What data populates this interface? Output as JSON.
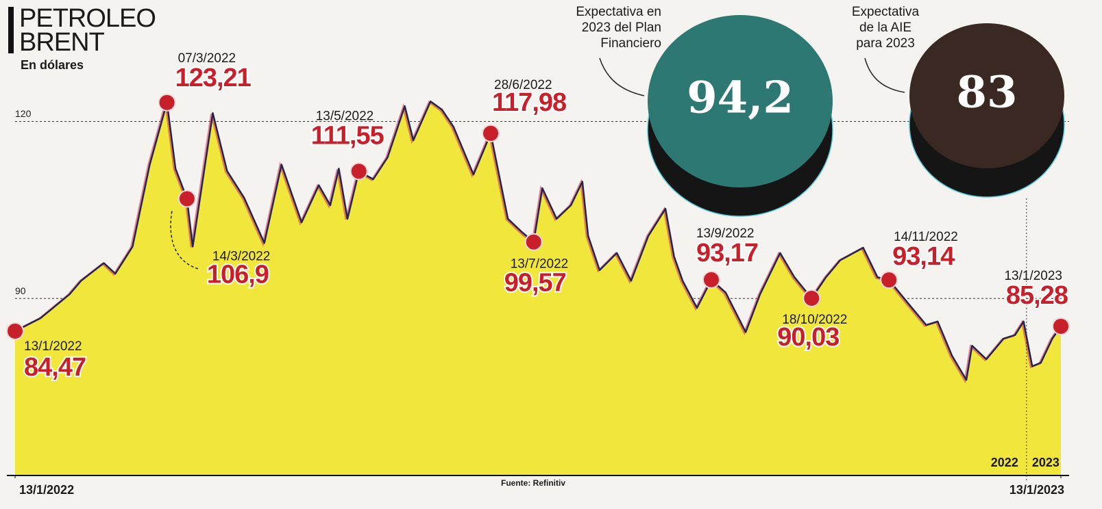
{
  "chart_data": {
    "type": "area",
    "title_lines": [
      "PETROLEO",
      "BRENT"
    ],
    "subtitle": "En dólares",
    "source": "Fuente: Refinitiv",
    "color": "#26244f",
    "fill_color": "#f1e63c",
    "x": [
      "2022-01-13",
      "2022-01-22",
      "2022-02-01",
      "2022-02-05",
      "2022-02-13",
      "2022-02-17",
      "2022-02-23",
      "2022-03-01",
      "2022-03-07",
      "2022-03-10",
      "2022-03-14",
      "2022-03-16",
      "2022-03-23",
      "2022-03-28",
      "2022-04-03",
      "2022-04-10",
      "2022-04-16",
      "2022-04-23",
      "2022-04-29",
      "2022-05-03",
      "2022-05-06",
      "2022-05-09",
      "2022-05-13",
      "2022-05-18",
      "2022-05-23",
      "2022-05-29",
      "2022-06-01",
      "2022-06-07",
      "2022-06-11",
      "2022-06-15",
      "2022-06-22",
      "2022-06-28",
      "2022-07-04",
      "2022-07-09",
      "2022-07-13",
      "2022-07-16",
      "2022-07-21",
      "2022-07-26",
      "2022-07-30",
      "2022-08-01",
      "2022-08-05",
      "2022-08-11",
      "2022-08-16",
      "2022-08-22",
      "2022-08-28",
      "2022-08-31",
      "2022-09-03",
      "2022-09-08",
      "2022-09-13",
      "2022-09-18",
      "2022-09-25",
      "2022-09-30",
      "2022-10-07",
      "2022-10-12",
      "2022-10-18",
      "2022-10-23",
      "2022-10-28",
      "2022-11-05",
      "2022-11-10",
      "2022-11-14",
      "2022-11-21",
      "2022-11-27",
      "2022-12-01",
      "2022-12-06",
      "2022-12-11",
      "2022-12-13",
      "2022-12-18",
      "2022-12-24",
      "2022-12-28",
      "2022-12-31",
      "2023-01-03",
      "2023-01-06",
      "2023-01-10",
      "2023-01-13"
    ],
    "values": [
      84.47,
      86.7,
      90.7,
      93.0,
      96.0,
      94.2,
      98.8,
      112.7,
      123.21,
      112.0,
      106.9,
      98.8,
      121.4,
      111.6,
      107.0,
      99.4,
      112.7,
      102.9,
      109.2,
      105.8,
      112.0,
      103.5,
      111.55,
      110.2,
      113.9,
      122.6,
      116.8,
      123.4,
      122.0,
      119.1,
      111.0,
      117.98,
      103.5,
      101.2,
      99.57,
      108.7,
      103.5,
      105.8,
      109.8,
      100.6,
      94.8,
      97.7,
      93.0,
      100.6,
      105.2,
      97.1,
      93.0,
      88.4,
      93.17,
      91.0,
      84.3,
      90.7,
      97.7,
      93.6,
      90.03,
      93.6,
      96.5,
      98.6,
      93.6,
      93.14,
      89.0,
      85.5,
      86.1,
      80.3,
      76.2,
      82.0,
      79.7,
      83.2,
      83.8,
      86.1,
      78.5,
      79.1,
      83.2,
      85.28
    ],
    "xlim": [
      "2022-01-13",
      "2023-01-13"
    ],
    "xticks": [
      {
        "value": "2022-01-13",
        "label": "13/1/2022"
      },
      {
        "value": "2023-01-13",
        "label": "13/1/2023"
      }
    ],
    "ylim": [
      60,
      140
    ],
    "yticks": [
      60,
      90,
      120
    ],
    "grid": true,
    "year_divider": {
      "date": "2023-01-01",
      "labels": [
        "2022",
        "2023"
      ]
    },
    "annotations": [
      {
        "date": "13/1/2022",
        "value": 84.47,
        "value_label": "84,47"
      },
      {
        "date": "07/3/2022",
        "value": 123.21,
        "value_label": "123,21"
      },
      {
        "date": "14/3/2022",
        "value": 106.9,
        "value_label": "106,9"
      },
      {
        "date": "13/5/2022",
        "value": 111.55,
        "value_label": "111,55"
      },
      {
        "date": "28/6/2022",
        "value": 117.98,
        "value_label": "117,98"
      },
      {
        "date": "13/7/2022",
        "value": 99.57,
        "value_label": "99,57"
      },
      {
        "date": "13/9/2022",
        "value": 93.17,
        "value_label": "93,17"
      },
      {
        "date": "18/10/2022",
        "value": 90.03,
        "value_label": "90,03"
      },
      {
        "date": "14/11/2022",
        "value": 93.14,
        "value_label": "93,14"
      },
      {
        "date": "13/1/2023",
        "value": 85.28,
        "value_label": "85,28"
      }
    ],
    "forecasts": [
      {
        "label_lines": [
          "Expectativa en",
          "2023 del Plan",
          "Financiero"
        ],
        "value": 94.2,
        "value_label": "94,2",
        "color": "#2e7874"
      },
      {
        "label_lines": [
          "Expectativa",
          "de la AIE",
          "para 2023"
        ],
        "value": 83,
        "value_label": "83",
        "color": "#3a2923"
      }
    ]
  }
}
